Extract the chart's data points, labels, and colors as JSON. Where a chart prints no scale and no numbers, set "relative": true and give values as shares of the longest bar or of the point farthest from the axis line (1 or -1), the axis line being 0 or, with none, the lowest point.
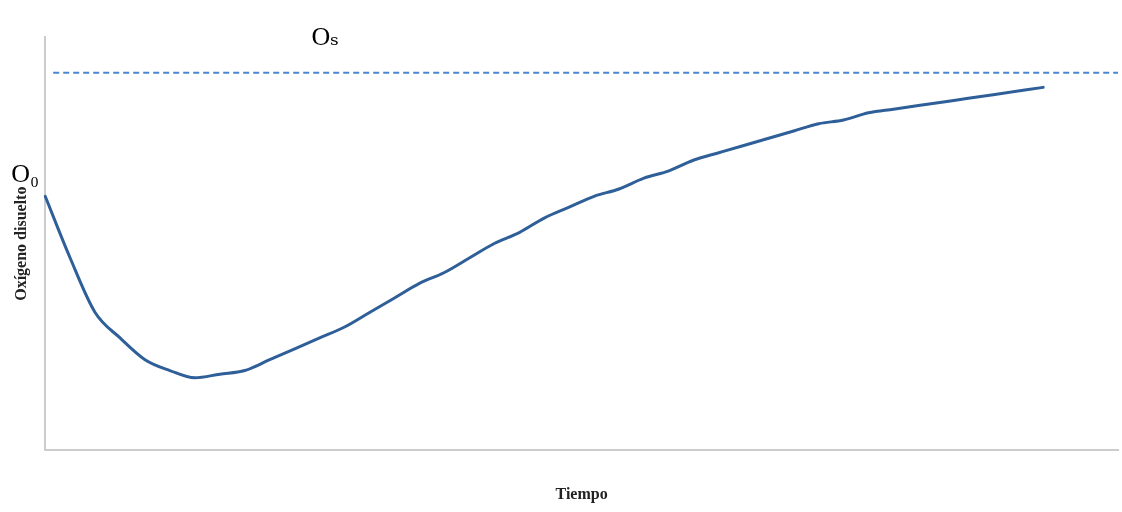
{
  "chart_data": {
    "type": "line",
    "xlabel": "Tiempo",
    "ylabel": "Oxígeno disuelto",
    "relative": true,
    "categories": [
      null,
      null,
      null,
      null,
      null,
      null,
      null,
      null,
      null,
      null,
      null,
      null,
      null,
      null,
      null,
      null,
      null,
      null,
      null,
      null,
      null,
      null,
      null,
      null,
      null,
      null,
      null,
      null,
      null,
      null,
      null,
      null,
      null,
      null,
      null,
      null,
      null,
      null,
      null,
      null,
      null,
      null,
      null,
      null
    ],
    "series": [
      {
        "color": "#2f5f98",
        "values": [
          0.7,
          0.53,
          0.38,
          0.31,
          0.25,
          0.22,
          0.2,
          0.21,
          0.22,
          0.25,
          0.28,
          0.31,
          0.34,
          0.38,
          0.42,
          0.46,
          0.49,
          0.53,
          0.57,
          0.6,
          0.64,
          0.67,
          0.7,
          0.72,
          0.75,
          0.77,
          0.8,
          0.82,
          0.84,
          0.86,
          0.88,
          0.9,
          0.91,
          0.93,
          0.94,
          0.95,
          0.96,
          0.97,
          0.98,
          0.99,
          1,
          null,
          null,
          null
        ]
      }
    ],
    "ref_lines": [
      {
        "axis": "y",
        "value": 1.04,
        "label": "Oₛ",
        "color": "#4a86d0",
        "line_style": "dashed"
      }
    ],
    "annotations": [
      "O₀"
    ],
    "grid": false,
    "legend": false,
    "marker": "none",
    "line_style": "solid"
  }
}
